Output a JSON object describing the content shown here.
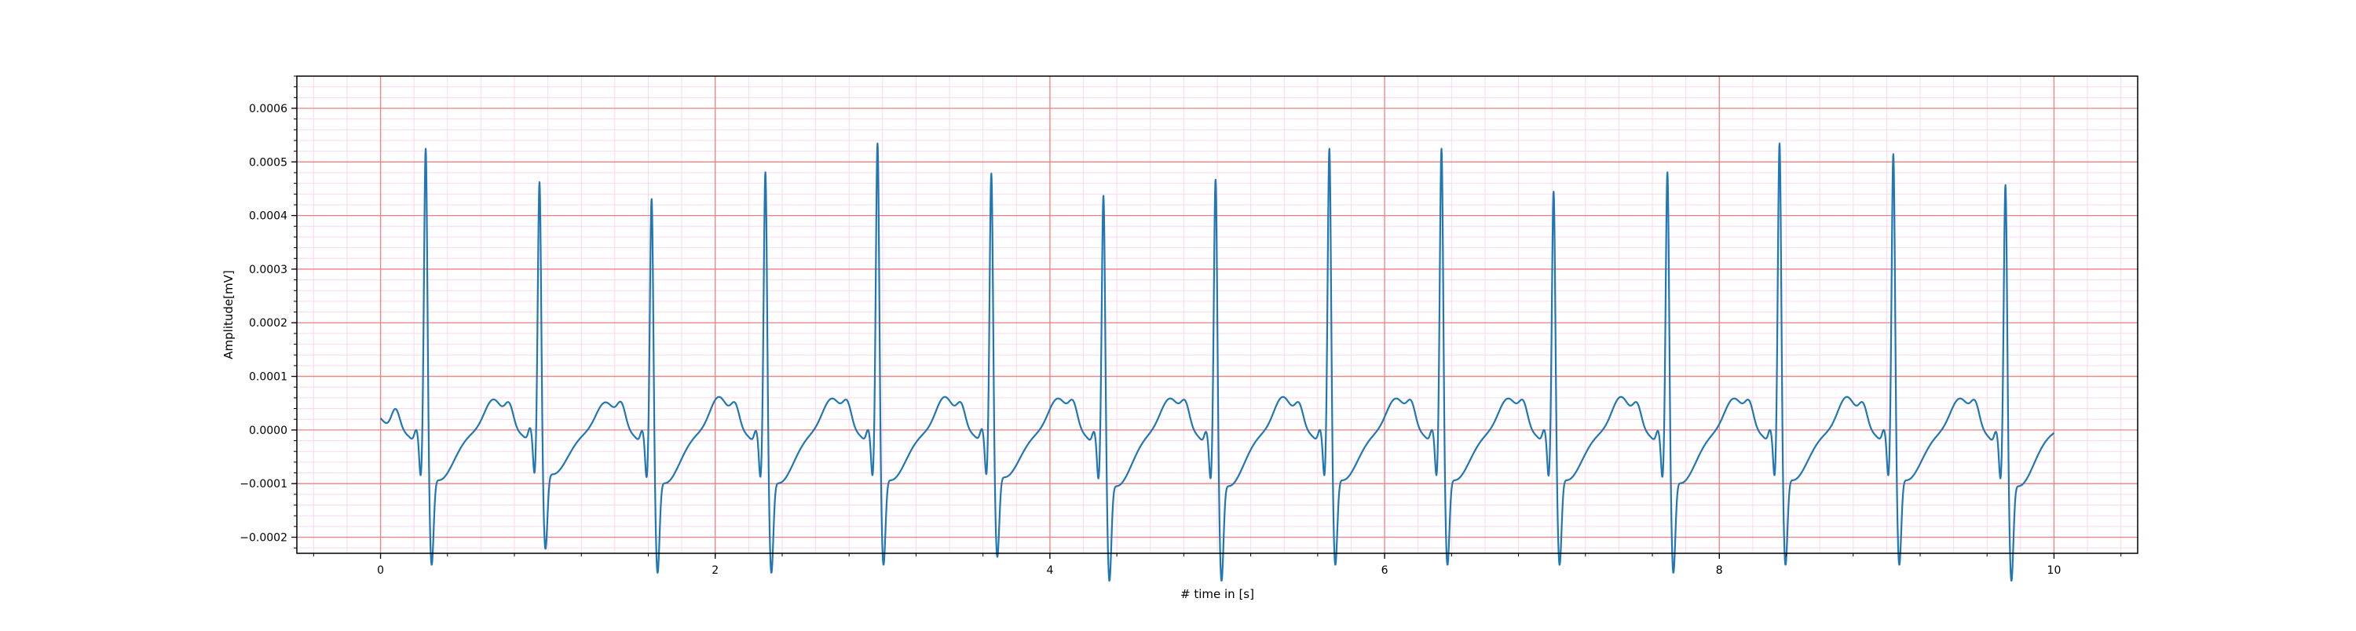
{
  "chart_data": {
    "type": "line",
    "title": "",
    "xlabel": "# time in [s]",
    "ylabel": "Amplitude[mV]",
    "xlim": [
      -0.5,
      10.5
    ],
    "ylim": [
      -0.00023,
      0.00066
    ],
    "x_ticks": [
      0,
      2,
      4,
      6,
      8,
      10
    ],
    "x_tick_labels": [
      "0",
      "2",
      "4",
      "6",
      "8",
      "10"
    ],
    "y_ticks": [
      -0.0002,
      -0.0001,
      0.0,
      0.0001,
      0.0002,
      0.0003,
      0.0004,
      0.0005,
      0.0006
    ],
    "y_tick_labels": [
      "−0.0002",
      "−0.0001",
      "0.0000",
      "0.0001",
      "0.0002",
      "0.0003",
      "0.0004",
      "0.0005",
      "0.0006"
    ],
    "grid": {
      "major": true,
      "minor": true,
      "major_color": "#f08080",
      "minor_color": "#ffd6ee"
    },
    "line_color": "#1f77b4",
    "series": [
      {
        "beats": [
          {
            "r_time": 0.27,
            "r_amp": 0.00059,
            "s_amp": -0.00017,
            "t_amp": 5e-05,
            "p_amp": 4e-05
          },
          {
            "r_time": 0.95,
            "r_amp": 0.00052,
            "s_amp": -0.00015,
            "t_amp": 4e-05,
            "p_amp": 4e-05
          },
          {
            "r_time": 1.62,
            "r_amp": 0.0005,
            "s_amp": -0.00018,
            "t_amp": 5e-05,
            "p_amp": 4e-05
          },
          {
            "r_time": 2.3,
            "r_amp": 0.00055,
            "s_amp": -0.00018,
            "t_amp": 5e-05,
            "p_amp": 4e-05
          },
          {
            "r_time": 2.97,
            "r_amp": 0.0006,
            "s_amp": -0.00017,
            "t_amp": 5e-05,
            "p_amp": 4e-05
          },
          {
            "r_time": 3.65,
            "r_amp": 0.00054,
            "s_amp": -0.00016,
            "t_amp": 5e-05,
            "p_amp": 4e-05
          },
          {
            "r_time": 4.32,
            "r_amp": 0.00051,
            "s_amp": -0.00019,
            "t_amp": 5e-05,
            "p_amp": 4e-05
          },
          {
            "r_time": 4.99,
            "r_amp": 0.00054,
            "s_amp": -0.00019,
            "t_amp": 5e-05,
            "p_amp": 4e-05
          },
          {
            "r_time": 5.67,
            "r_amp": 0.00059,
            "s_amp": -0.00017,
            "t_amp": 5e-05,
            "p_amp": 4e-05
          },
          {
            "r_time": 6.34,
            "r_amp": 0.00059,
            "s_amp": -0.00017,
            "t_amp": 5e-05,
            "p_amp": 4e-05
          },
          {
            "r_time": 7.01,
            "r_amp": 0.00051,
            "s_amp": -0.00017,
            "t_amp": 5e-05,
            "p_amp": 4e-05
          },
          {
            "r_time": 7.69,
            "r_amp": 0.00055,
            "s_amp": -0.00018,
            "t_amp": 5e-05,
            "p_amp": 4e-05
          },
          {
            "r_time": 8.36,
            "r_amp": 0.0006,
            "s_amp": -0.00017,
            "t_amp": 5e-05,
            "p_amp": 4e-05
          },
          {
            "r_time": 9.04,
            "r_amp": 0.00058,
            "s_amp": -0.00017,
            "t_amp": 5e-05,
            "p_amp": 4e-05
          },
          {
            "r_time": 9.71,
            "r_amp": 0.00053,
            "s_amp": -0.00019,
            "t_amp": 5e-05,
            "p_amp": 4e-05
          }
        ],
        "t_end": 10.0,
        "baseline": 0.0
      }
    ]
  }
}
